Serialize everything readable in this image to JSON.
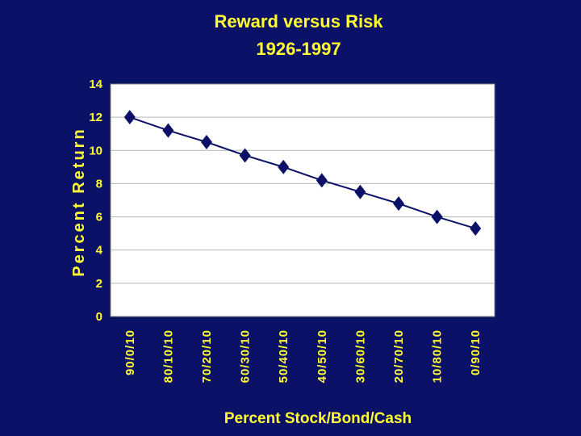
{
  "chart_data": {
    "type": "line",
    "title": "Reward versus Risk",
    "subtitle": "1926-1997",
    "xlabel": "Percent Stock/Bond/Cash",
    "ylabel": "Percent Return",
    "categories": [
      "90/0/10",
      "80/10/10",
      "70/20/10",
      "60/30/10",
      "50/40/10",
      "40/50/10",
      "30/60/10",
      "20/70/10",
      "10/80/10",
      "0/90/10"
    ],
    "series": [
      {
        "values": [
          12.0,
          11.2,
          10.5,
          9.7,
          9.0,
          8.2,
          7.5,
          6.8,
          6.0,
          5.3
        ]
      }
    ],
    "ylim": [
      0,
      14
    ],
    "yticks": [
      0,
      2,
      4,
      6,
      8,
      10,
      12,
      14
    ],
    "grid": true,
    "legend": "none",
    "colors": {
      "background": "#0b1166",
      "plot_area": "#ffffff",
      "text": "#ffff33",
      "series": "#0b1166",
      "grid": "#b5b5b5"
    }
  }
}
